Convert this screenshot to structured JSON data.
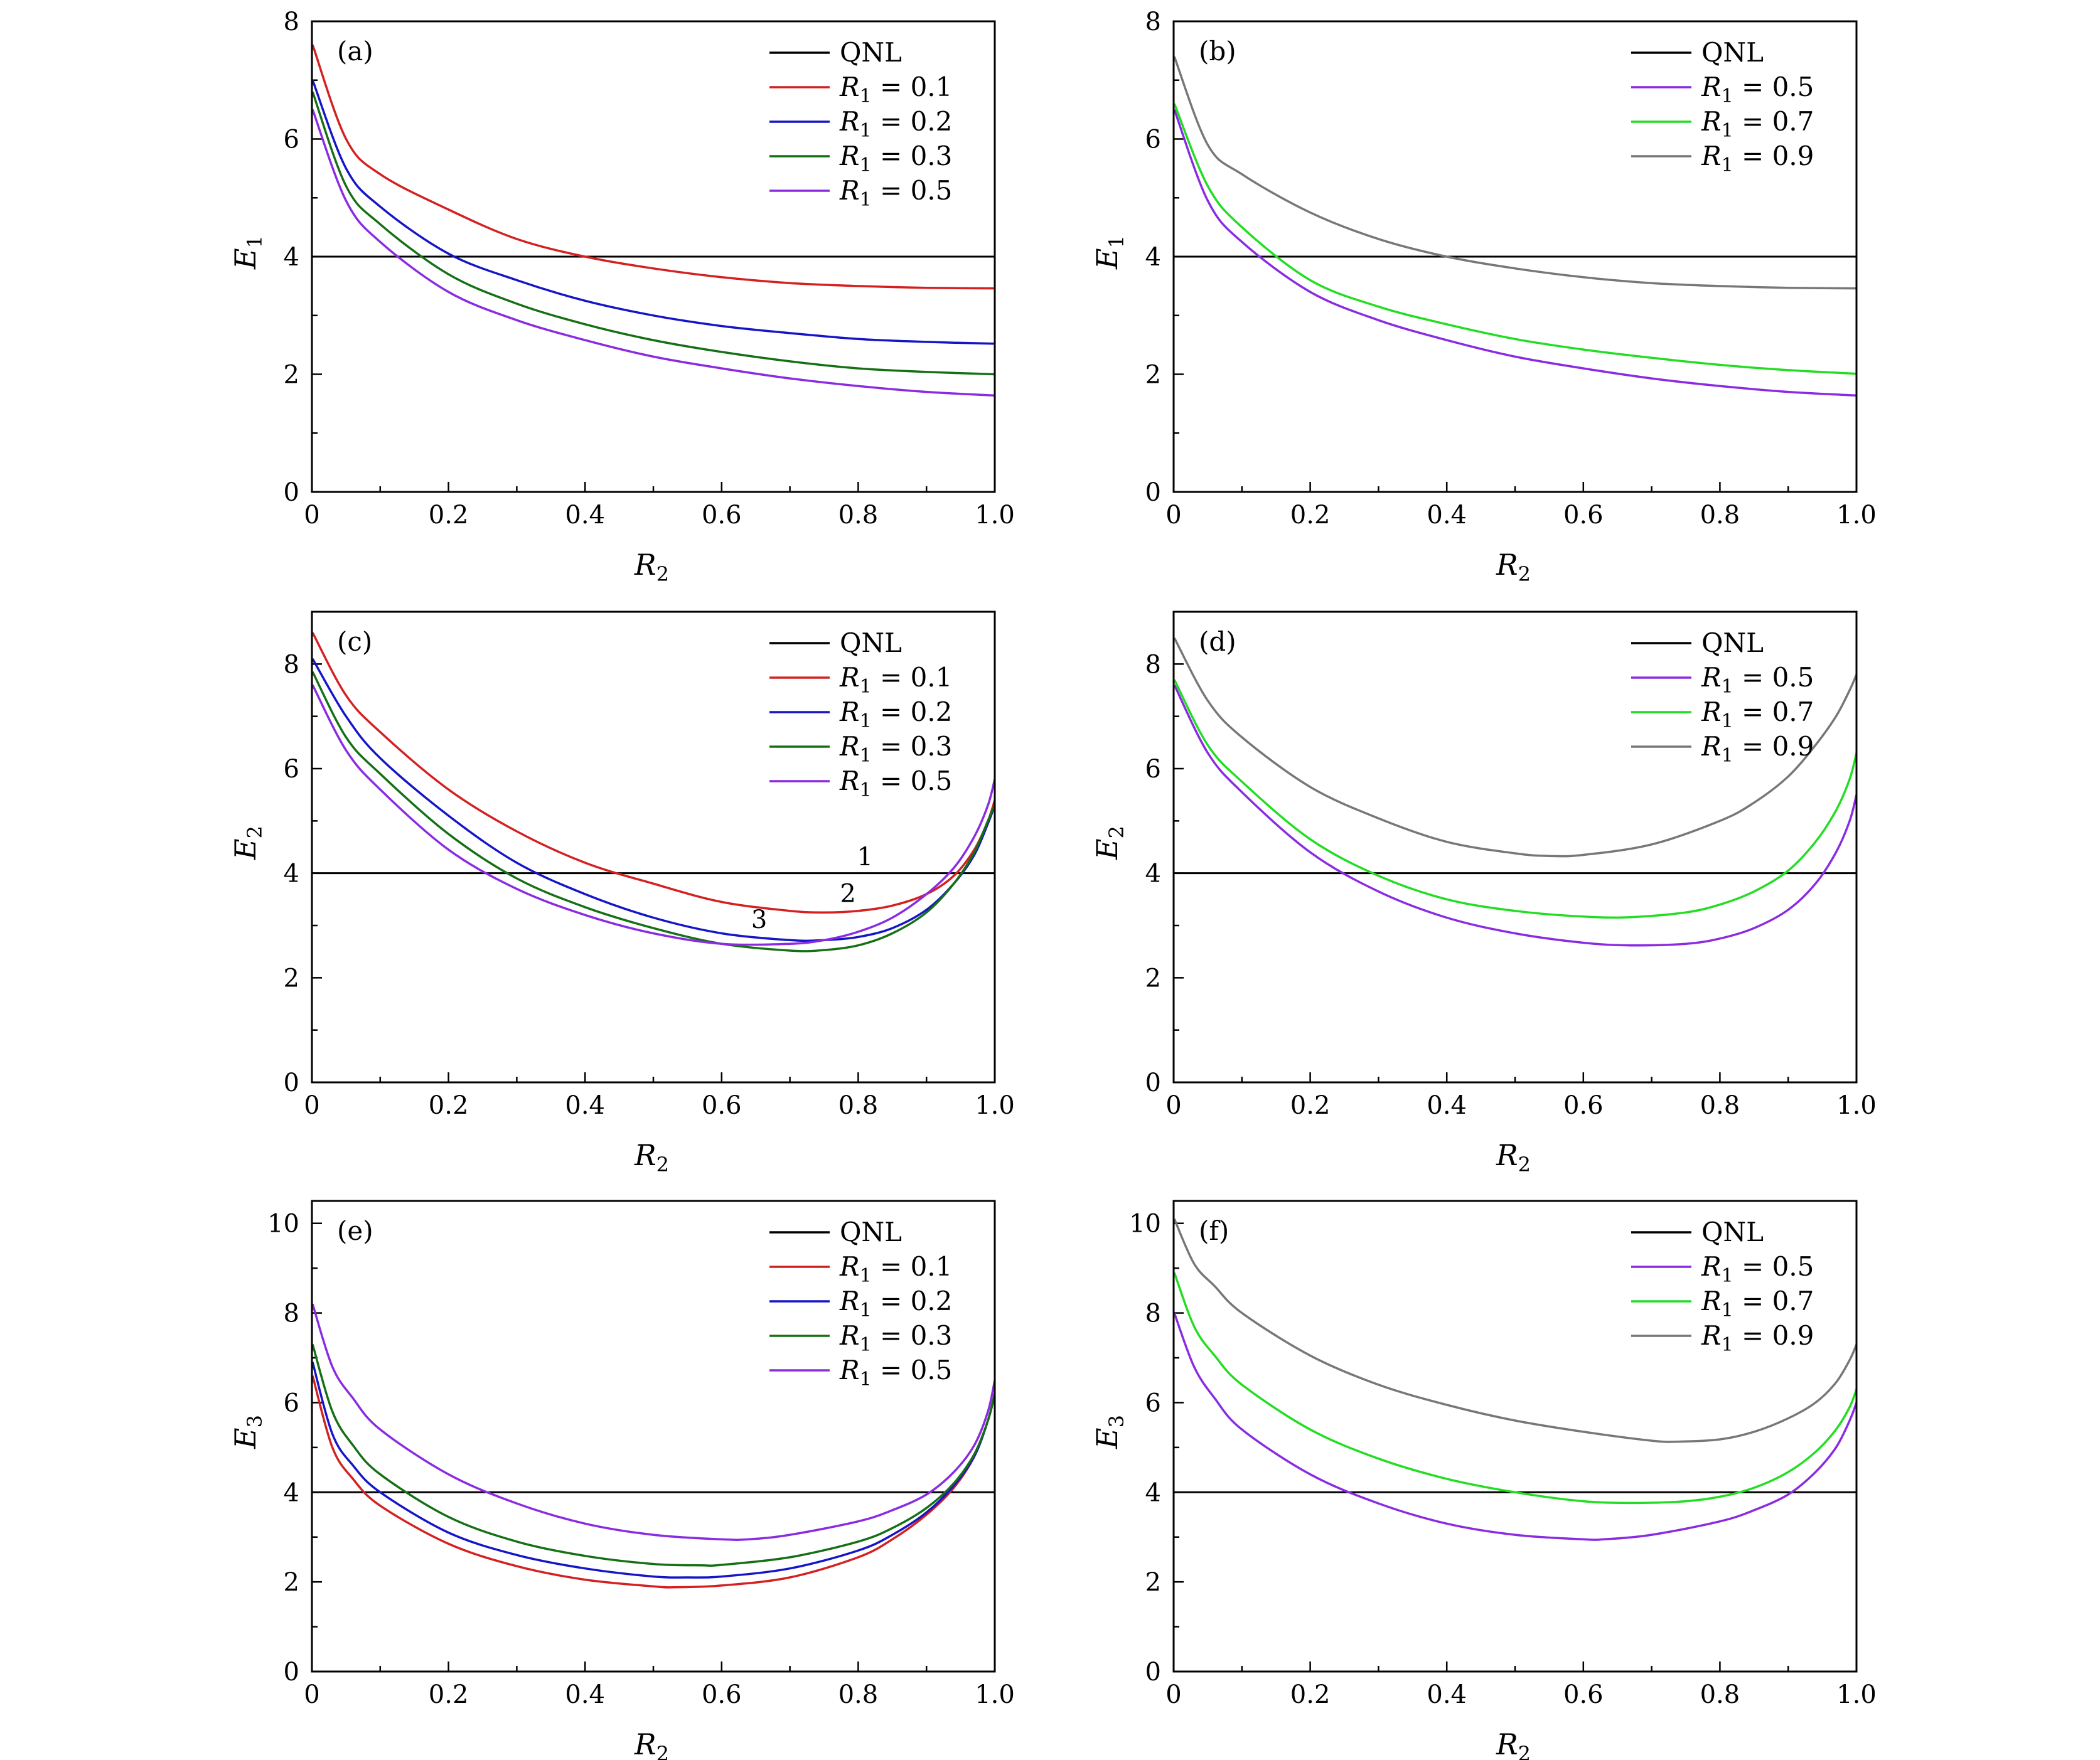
{
  "panels": [
    {
      "label": "(a)",
      "ylabel": "E1",
      "xlabel": "R2",
      "ylim": [
        0,
        8
      ],
      "yticks": [
        "0",
        "2",
        "4",
        "6",
        "8"
      ],
      "xticks": [
        "0",
        "0.2",
        "0.4",
        "0.6",
        "0.8",
        "1.0"
      ],
      "legend": [
        "QNL",
        "R1 = 0.1",
        "R1 = 0.2",
        "R1 = 0.3",
        "R1 = 0.5"
      ],
      "colors": [
        "#000000",
        "#d42020",
        "#1515c8",
        "#157015",
        "#8a2be2"
      ],
      "qnl": 4,
      "series": [
        {
          "name": "R1 = 0.1",
          "x": [
            0.001,
            0.05,
            0.1,
            0.2,
            0.3,
            0.4,
            0.5,
            0.6,
            0.7,
            0.8,
            0.9,
            1.0
          ],
          "y": [
            7.6,
            6.0,
            5.4,
            4.8,
            4.3,
            4.0,
            3.8,
            3.65,
            3.55,
            3.5,
            3.47,
            3.46
          ]
        },
        {
          "name": "R1 = 0.2",
          "x": [
            0.001,
            0.05,
            0.1,
            0.2,
            0.3,
            0.4,
            0.5,
            0.6,
            0.7,
            0.8,
            0.9,
            1.0
          ],
          "y": [
            7.0,
            5.5,
            4.85,
            4.05,
            3.6,
            3.25,
            3.0,
            2.82,
            2.7,
            2.6,
            2.55,
            2.52
          ]
        },
        {
          "name": "R1 = 0.3",
          "x": [
            0.001,
            0.05,
            0.1,
            0.2,
            0.3,
            0.4,
            0.5,
            0.6,
            0.7,
            0.8,
            0.9,
            1.0
          ],
          "y": [
            6.8,
            5.2,
            4.55,
            3.7,
            3.2,
            2.85,
            2.58,
            2.38,
            2.22,
            2.1,
            2.04,
            2.0
          ]
        },
        {
          "name": "R1 = 0.5",
          "x": [
            0.001,
            0.05,
            0.1,
            0.2,
            0.3,
            0.4,
            0.5,
            0.6,
            0.7,
            0.8,
            0.9,
            1.0
          ],
          "y": [
            6.5,
            4.95,
            4.25,
            3.4,
            2.92,
            2.58,
            2.3,
            2.1,
            1.93,
            1.8,
            1.7,
            1.64
          ]
        }
      ]
    },
    {
      "label": "(b)",
      "ylabel": "E1",
      "xlabel": "R2",
      "ylim": [
        0,
        8
      ],
      "yticks": [
        "0",
        "2",
        "4",
        "6",
        "8"
      ],
      "xticks": [
        "0",
        "0.2",
        "0.4",
        "0.6",
        "0.8",
        "1.0"
      ],
      "legend": [
        "QNL",
        "R1 = 0.5",
        "R1 = 0.7",
        "R1 = 0.9"
      ],
      "colors": [
        "#000000",
        "#8a2be2",
        "#22dd22",
        "#777777"
      ],
      "qnl": 4,
      "series": [
        {
          "name": "R1 = 0.5",
          "x": [
            0.001,
            0.05,
            0.1,
            0.2,
            0.3,
            0.4,
            0.5,
            0.6,
            0.7,
            0.8,
            0.9,
            1.0
          ],
          "y": [
            6.5,
            4.95,
            4.25,
            3.4,
            2.92,
            2.58,
            2.3,
            2.1,
            1.93,
            1.8,
            1.7,
            1.64
          ]
        },
        {
          "name": "R1 = 0.7",
          "x": [
            0.001,
            0.05,
            0.1,
            0.2,
            0.3,
            0.4,
            0.5,
            0.6,
            0.7,
            0.8,
            0.9,
            1.0
          ],
          "y": [
            6.6,
            5.2,
            4.5,
            3.6,
            3.15,
            2.85,
            2.6,
            2.42,
            2.28,
            2.16,
            2.07,
            2.01
          ]
        },
        {
          "name": "R1 = 0.9",
          "x": [
            0.001,
            0.05,
            0.1,
            0.2,
            0.3,
            0.4,
            0.5,
            0.6,
            0.7,
            0.8,
            0.9,
            1.0
          ],
          "y": [
            7.4,
            5.9,
            5.4,
            4.75,
            4.3,
            4.0,
            3.8,
            3.65,
            3.55,
            3.5,
            3.47,
            3.46
          ]
        }
      ]
    },
    {
      "label": "(c)",
      "ylabel": "E2",
      "xlabel": "R2",
      "ylim": [
        0,
        9
      ],
      "yticks": [
        "0",
        "2",
        "4",
        "6",
        "8"
      ],
      "xticks": [
        "0",
        "0.2",
        "0.4",
        "0.6",
        "0.8",
        "1.0"
      ],
      "legend": [
        "QNL",
        "R1 = 0.1",
        "R1 = 0.2",
        "R1 = 0.3",
        "R1 = 0.5"
      ],
      "colors": [
        "#000000",
        "#d42020",
        "#1515c8",
        "#157015",
        "#8a2be2"
      ],
      "qnl": 4,
      "annotations": [
        {
          "text": "1",
          "x": 0.81,
          "y": 4.15
        },
        {
          "text": "2",
          "x": 0.785,
          "y": 3.45
        },
        {
          "text": "3",
          "x": 0.655,
          "y": 2.95
        }
      ],
      "series": [
        {
          "name": "R1 = 0.1",
          "x": [
            0.001,
            0.05,
            0.1,
            0.2,
            0.3,
            0.4,
            0.5,
            0.6,
            0.7,
            0.75,
            0.8,
            0.85,
            0.9,
            0.94,
            0.97,
            0.99,
            1.0
          ],
          "y": [
            8.6,
            7.4,
            6.7,
            5.6,
            4.8,
            4.2,
            3.8,
            3.45,
            3.28,
            3.25,
            3.28,
            3.38,
            3.6,
            3.95,
            4.45,
            5.0,
            5.4
          ]
        },
        {
          "name": "R1 = 0.2",
          "x": [
            0.001,
            0.05,
            0.1,
            0.2,
            0.3,
            0.4,
            0.5,
            0.6,
            0.7,
            0.75,
            0.8,
            0.85,
            0.9,
            0.94,
            0.97,
            0.99,
            1.0
          ],
          "y": [
            8.1,
            7.0,
            6.2,
            5.1,
            4.2,
            3.6,
            3.15,
            2.85,
            2.72,
            2.72,
            2.78,
            2.95,
            3.3,
            3.8,
            4.35,
            4.95,
            5.3
          ]
        },
        {
          "name": "R1 = 0.3",
          "x": [
            0.001,
            0.05,
            0.1,
            0.2,
            0.3,
            0.4,
            0.5,
            0.6,
            0.7,
            0.75,
            0.8,
            0.85,
            0.9,
            0.94,
            0.97,
            0.99,
            1.0
          ],
          "y": [
            7.85,
            6.6,
            5.9,
            4.75,
            3.9,
            3.35,
            2.95,
            2.65,
            2.52,
            2.53,
            2.62,
            2.85,
            3.25,
            3.8,
            4.4,
            5.0,
            5.3
          ]
        },
        {
          "name": "R1 = 0.5",
          "x": [
            0.001,
            0.05,
            0.1,
            0.2,
            0.3,
            0.4,
            0.5,
            0.6,
            0.7,
            0.75,
            0.8,
            0.85,
            0.9,
            0.94,
            0.97,
            0.99,
            1.0
          ],
          "y": [
            7.6,
            6.35,
            5.6,
            4.45,
            3.7,
            3.2,
            2.85,
            2.65,
            2.65,
            2.72,
            2.88,
            3.15,
            3.6,
            4.1,
            4.7,
            5.3,
            5.8
          ]
        }
      ]
    },
    {
      "label": "(d)",
      "ylabel": "E2",
      "xlabel": "R2",
      "ylim": [
        0,
        9
      ],
      "yticks": [
        "0",
        "2",
        "4",
        "6",
        "8"
      ],
      "xticks": [
        "0",
        "0.2",
        "0.4",
        "0.6",
        "0.8",
        "1.0"
      ],
      "legend": [
        "QNL",
        "R1 = 0.5",
        "R1 = 0.7",
        "R1 = 0.9"
      ],
      "colors": [
        "#000000",
        "#8a2be2",
        "#22dd22",
        "#777777"
      ],
      "qnl": 4,
      "series": [
        {
          "name": "R1 = 0.5",
          "x": [
            0.001,
            0.05,
            0.1,
            0.2,
            0.3,
            0.4,
            0.5,
            0.6,
            0.67,
            0.75,
            0.8,
            0.85,
            0.9,
            0.94,
            0.97,
            0.99,
            1.0
          ],
          "y": [
            7.6,
            6.3,
            5.55,
            4.4,
            3.65,
            3.15,
            2.85,
            2.67,
            2.62,
            2.65,
            2.75,
            2.95,
            3.3,
            3.8,
            4.4,
            5.0,
            5.5
          ]
        },
        {
          "name": "R1 = 0.7",
          "x": [
            0.001,
            0.05,
            0.1,
            0.2,
            0.3,
            0.4,
            0.5,
            0.6,
            0.67,
            0.75,
            0.8,
            0.85,
            0.9,
            0.94,
            0.97,
            0.99,
            1.0
          ],
          "y": [
            7.7,
            6.45,
            5.75,
            4.65,
            3.95,
            3.5,
            3.28,
            3.17,
            3.16,
            3.25,
            3.4,
            3.65,
            4.05,
            4.6,
            5.2,
            5.8,
            6.3
          ]
        },
        {
          "name": "R1 = 0.9",
          "x": [
            0.001,
            0.05,
            0.1,
            0.2,
            0.3,
            0.4,
            0.5,
            0.55,
            0.6,
            0.7,
            0.8,
            0.85,
            0.9,
            0.94,
            0.97,
            0.99,
            1.0
          ],
          "y": [
            8.5,
            7.3,
            6.6,
            5.65,
            5.05,
            4.6,
            4.38,
            4.33,
            4.35,
            4.55,
            5.0,
            5.35,
            5.85,
            6.45,
            7.0,
            7.5,
            7.8
          ]
        }
      ]
    },
    {
      "label": "(e)",
      "ylabel": "E3",
      "xlabel": "R2",
      "ylim": [
        0,
        10.5
      ],
      "yticks": [
        "0",
        "2",
        "4",
        "6",
        "8",
        "10"
      ],
      "xticks": [
        "0",
        "0.2",
        "0.4",
        "0.6",
        "0.8",
        "1.0"
      ],
      "legend": [
        "QNL",
        "R1 = 0.1",
        "R1 = 0.2",
        "R1 = 0.3",
        "R1 = 0.5"
      ],
      "colors": [
        "#000000",
        "#d42020",
        "#1515c8",
        "#157015",
        "#8a2be2"
      ],
      "qnl": 4,
      "series": [
        {
          "name": "R1 = 0.1",
          "x": [
            0.001,
            0.03,
            0.06,
            0.1,
            0.2,
            0.3,
            0.4,
            0.5,
            0.53,
            0.6,
            0.7,
            0.8,
            0.85,
            0.9,
            0.94,
            0.97,
            0.99,
            1.0
          ],
          "y": [
            6.6,
            5.0,
            4.3,
            3.7,
            2.85,
            2.35,
            2.05,
            1.9,
            1.88,
            1.92,
            2.1,
            2.55,
            2.95,
            3.5,
            4.1,
            4.8,
            5.6,
            6.2
          ]
        },
        {
          "name": "R1 = 0.2",
          "x": [
            0.001,
            0.03,
            0.06,
            0.1,
            0.2,
            0.3,
            0.4,
            0.5,
            0.55,
            0.6,
            0.7,
            0.8,
            0.85,
            0.9,
            0.94,
            0.97,
            0.99,
            1.0
          ],
          "y": [
            6.9,
            5.3,
            4.6,
            4.0,
            3.1,
            2.6,
            2.3,
            2.12,
            2.1,
            2.12,
            2.3,
            2.7,
            3.05,
            3.55,
            4.15,
            4.8,
            5.6,
            6.2
          ]
        },
        {
          "name": "R1 = 0.3",
          "x": [
            0.001,
            0.03,
            0.06,
            0.1,
            0.2,
            0.3,
            0.4,
            0.5,
            0.57,
            0.6,
            0.7,
            0.8,
            0.85,
            0.9,
            0.94,
            0.97,
            0.99,
            1.0
          ],
          "y": [
            7.3,
            5.8,
            5.05,
            4.4,
            3.45,
            2.9,
            2.58,
            2.4,
            2.37,
            2.38,
            2.55,
            2.9,
            3.2,
            3.65,
            4.2,
            4.85,
            5.6,
            6.2
          ]
        },
        {
          "name": "R1 = 0.5",
          "x": [
            0.001,
            0.03,
            0.06,
            0.1,
            0.2,
            0.3,
            0.4,
            0.5,
            0.6,
            0.64,
            0.7,
            0.8,
            0.85,
            0.9,
            0.94,
            0.97,
            0.99,
            1.0
          ],
          "y": [
            8.2,
            6.8,
            6.1,
            5.4,
            4.4,
            3.75,
            3.3,
            3.05,
            2.95,
            2.95,
            3.05,
            3.35,
            3.6,
            3.95,
            4.45,
            5.05,
            5.8,
            6.5
          ]
        }
      ]
    },
    {
      "label": "(f)",
      "ylabel": "E3",
      "xlabel": "R2",
      "ylim": [
        0,
        10.5
      ],
      "yticks": [
        "0",
        "2",
        "4",
        "6",
        "8",
        "10"
      ],
      "xticks": [
        "0",
        "0.2",
        "0.4",
        "0.6",
        "0.8",
        "1.0"
      ],
      "legend": [
        "QNL",
        "R1 = 0.5",
        "R1 = 0.7",
        "R1 = 0.9"
      ],
      "colors": [
        "#000000",
        "#8a2be2",
        "#22dd22",
        "#777777"
      ],
      "qnl": 4,
      "series": [
        {
          "name": "R1 = 0.5",
          "x": [
            0.001,
            0.03,
            0.06,
            0.1,
            0.2,
            0.3,
            0.4,
            0.5,
            0.6,
            0.63,
            0.7,
            0.8,
            0.85,
            0.9,
            0.94,
            0.97,
            0.99,
            1.0
          ],
          "y": [
            8.0,
            6.8,
            6.1,
            5.4,
            4.4,
            3.75,
            3.3,
            3.05,
            2.95,
            2.95,
            3.05,
            3.35,
            3.6,
            3.95,
            4.45,
            5.0,
            5.6,
            6.0
          ]
        },
        {
          "name": "R1 = 0.7",
          "x": [
            0.001,
            0.03,
            0.06,
            0.1,
            0.2,
            0.3,
            0.4,
            0.5,
            0.6,
            0.68,
            0.75,
            0.8,
            0.85,
            0.9,
            0.94,
            0.97,
            0.99,
            1.0
          ],
          "y": [
            8.9,
            7.7,
            7.05,
            6.4,
            5.4,
            4.75,
            4.3,
            4.0,
            3.8,
            3.76,
            3.8,
            3.9,
            4.1,
            4.45,
            4.9,
            5.4,
            5.9,
            6.3
          ]
        },
        {
          "name": "R1 = 0.9",
          "x": [
            0.001,
            0.03,
            0.06,
            0.1,
            0.2,
            0.3,
            0.4,
            0.5,
            0.6,
            0.7,
            0.74,
            0.8,
            0.85,
            0.9,
            0.94,
            0.97,
            0.99,
            1.0
          ],
          "y": [
            10.1,
            9.1,
            8.6,
            8.0,
            7.05,
            6.4,
            5.95,
            5.6,
            5.35,
            5.15,
            5.13,
            5.18,
            5.35,
            5.65,
            6.0,
            6.45,
            6.95,
            7.3
          ]
        }
      ]
    }
  ]
}
